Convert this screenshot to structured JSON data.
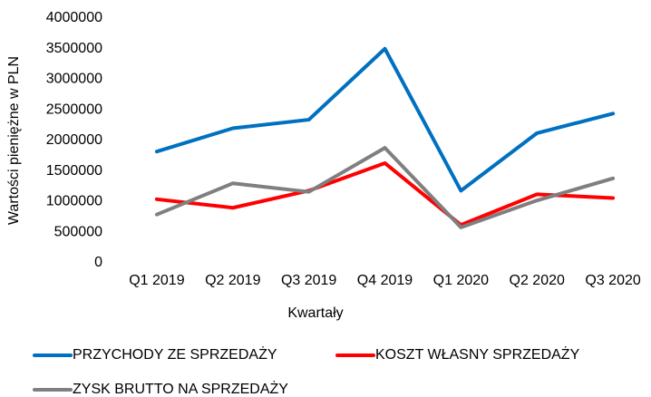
{
  "chart_data": {
    "type": "line",
    "x_label": "Kwartały",
    "y_label": "Wartości pieniężne w PLN",
    "categories": [
      "Q1 2019",
      "Q2 2019",
      "Q3 2019",
      "Q4 2019",
      "Q1 2020",
      "Q2 2020",
      "Q3 2020"
    ],
    "series": [
      {
        "name": "PRZYCHODY ZE SPRZEDAŻY",
        "color": "#0070c0",
        "values": [
          1820000,
          2200000,
          2340000,
          3500000,
          1180000,
          2120000,
          2440000
        ]
      },
      {
        "name": "KOSZT WŁASNY SPRZEDAŻY",
        "color": "#ff0000",
        "values": [
          1040000,
          900000,
          1180000,
          1630000,
          620000,
          1120000,
          1060000
        ]
      },
      {
        "name": "ZYSK BRUTTO NA SPRZEDAŻY",
        "color": "#7f7f7f",
        "values": [
          790000,
          1300000,
          1160000,
          1880000,
          580000,
          1020000,
          1380000
        ]
      }
    ],
    "ylim": [
      0,
      4000000
    ],
    "yticks": [
      0,
      500000,
      1000000,
      1500000,
      2000000,
      2500000,
      3000000,
      3500000,
      4000000
    ],
    "grid": false,
    "legend": "bottom"
  }
}
